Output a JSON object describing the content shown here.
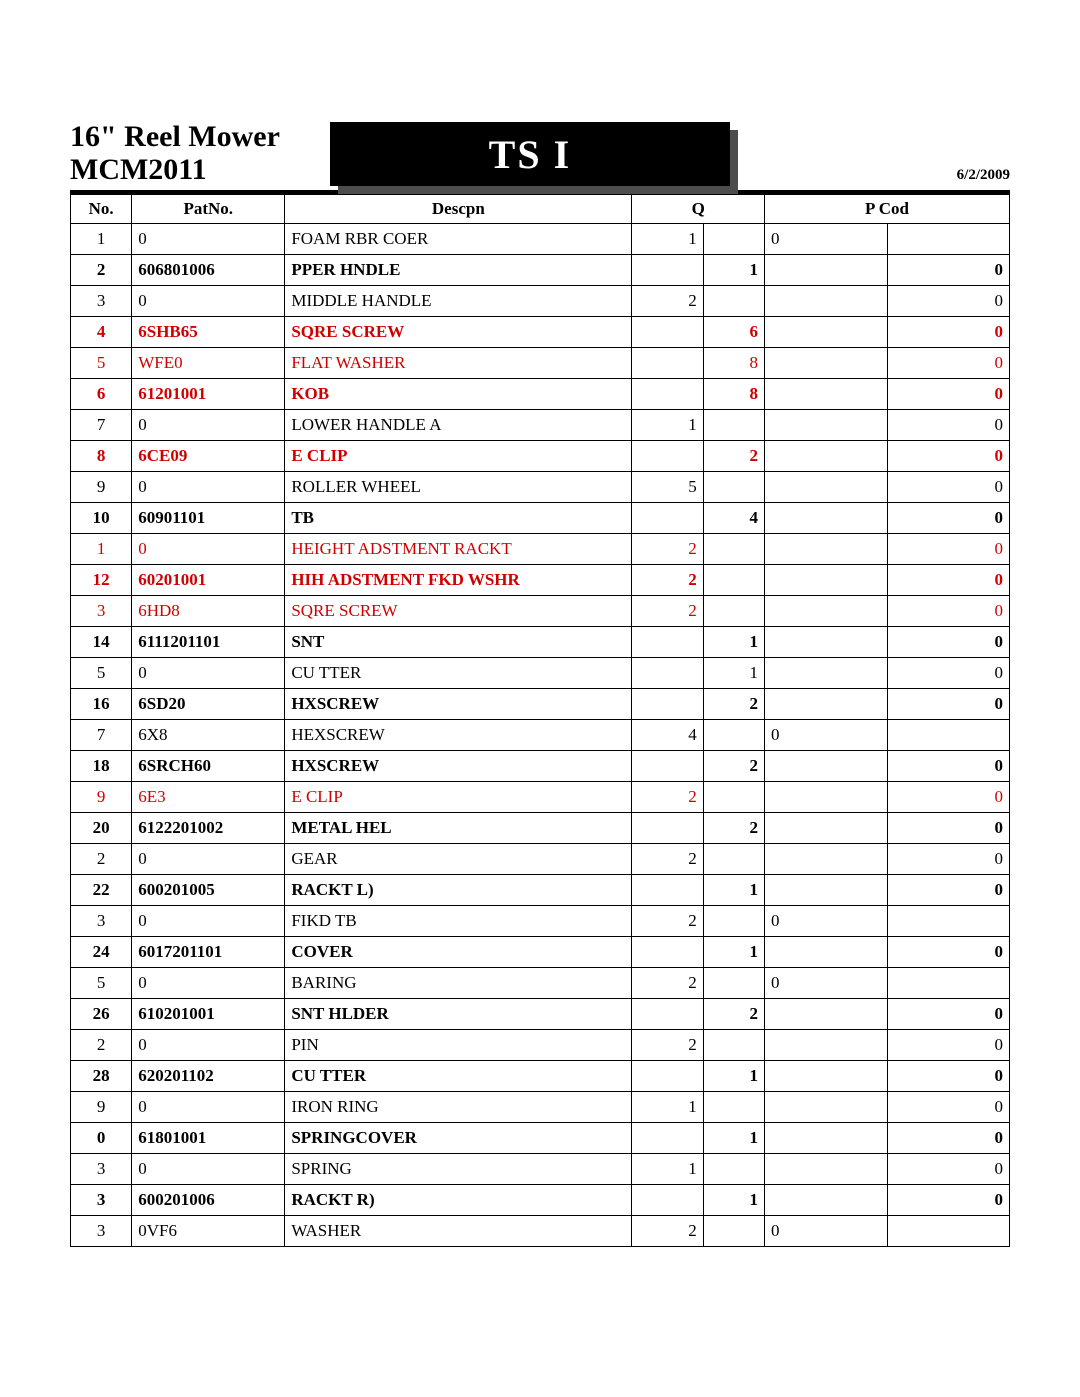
{
  "header": {
    "title1": "16\" Reel Mower",
    "title2": "MCM2011",
    "parts_list_label": "TS   I",
    "date": "6/2/2009"
  },
  "columns": {
    "no": "No.",
    "part_no": "PatNo.",
    "desc": "Descpn",
    "q": "Q",
    "pcode": "P Cod"
  },
  "rows": [
    {
      "no": "1",
      "pn": "0",
      "desc": "FOAM RBR COER",
      "q1": "1",
      "q2": "",
      "p1": "0",
      "p2": "",
      "red": false,
      "bold": false
    },
    {
      "no": "2",
      "pn": "606801006",
      "desc": "PPER HNDLE",
      "q1": "",
      "q2": "1",
      "p1": "",
      "p2": "0",
      "red": false,
      "bold": true
    },
    {
      "no": "3",
      "pn": "0",
      "desc": "MIDDLE HANDLE",
      "q1": "2",
      "q2": "",
      "p1": "",
      "p2": "0",
      "red": false,
      "bold": false
    },
    {
      "no": "4",
      "pn": "6SHB65",
      "desc": "SQRE SCREW",
      "q1": "",
      "q2": "6",
      "p1": "",
      "p2": "0",
      "red": true,
      "bold": true
    },
    {
      "no": "5",
      "pn": "WFE0",
      "desc": "FLAT WASHER",
      "q1": "",
      "q2": "8",
      "p1": "",
      "p2": "0",
      "red": true,
      "bold": false
    },
    {
      "no": "6",
      "pn": "61201001",
      "desc": "KOB",
      "q1": "",
      "q2": "8",
      "p1": "",
      "p2": "0",
      "red": true,
      "bold": true
    },
    {
      "no": "7",
      "pn": "0",
      "desc": "LOWER HANDLE A",
      "q1": "1",
      "q2": "",
      "p1": "",
      "p2": "0",
      "red": false,
      "bold": false
    },
    {
      "no": "8",
      "pn": "6CE09",
      "desc": "E CLIP",
      "q1": "",
      "q2": "2",
      "p1": "",
      "p2": "0",
      "red": true,
      "bold": true
    },
    {
      "no": "9",
      "pn": "0",
      "desc": "ROLLER WHEEL",
      "q1": "5",
      "q2": "",
      "p1": "",
      "p2": "0",
      "red": false,
      "bold": false
    },
    {
      "no": "10",
      "pn": "60901101",
      "desc": "TB",
      "q1": "",
      "q2": "4",
      "p1": "",
      "p2": "0",
      "red": false,
      "bold": true
    },
    {
      "no": "1",
      "pn": "0",
      "desc": "HEIGHT ADSTMENT RACKT",
      "q1": "2",
      "q2": "",
      "p1": "",
      "p2": "0",
      "red": true,
      "bold": false
    },
    {
      "no": "12",
      "pn": "60201001",
      "desc": "HIH ADSTMENT FKD WSHR",
      "q1": "2",
      "q2": "",
      "p1": "",
      "p2": "0",
      "red": true,
      "bold": true
    },
    {
      "no": "3",
      "pn": "6HD8",
      "desc": "SQRE SCREW",
      "q1": "2",
      "q2": "",
      "p1": "",
      "p2": "0",
      "red": true,
      "bold": false
    },
    {
      "no": "14",
      "pn": "6111201101",
      "desc": "SNT",
      "q1": "",
      "q2": "1",
      "p1": "",
      "p2": "0",
      "red": false,
      "bold": true
    },
    {
      "no": "5",
      "pn": "0",
      "desc": "CU        TTER",
      "q1": "",
      "q2": "1",
      "p1": "",
      "p2": "0",
      "red": false,
      "bold": false
    },
    {
      "no": "16",
      "pn": "6SD20",
      "desc": "HXSCREW",
      "q1": "",
      "q2": "2",
      "p1": "",
      "p2": "0",
      "red": false,
      "bold": true
    },
    {
      "no": "7",
      "pn": "6X8",
      "desc": "HEXSCREW",
      "q1": "4",
      "q2": "",
      "p1": "0",
      "p2": "",
      "red": false,
      "bold": false
    },
    {
      "no": "18",
      "pn": "6SRCH60",
      "desc": "HXSCREW",
      "q1": "",
      "q2": "2",
      "p1": "",
      "p2": "0",
      "red": false,
      "bold": true
    },
    {
      "no": "9",
      "pn": "6E3",
      "desc": "E CLIP",
      "q1": "2",
      "q2": "",
      "p1": "",
      "p2": "0",
      "red": true,
      "bold": false
    },
    {
      "no": "20",
      "pn": "6122201002",
      "desc": "METAL HEL",
      "q1": "",
      "q2": "2",
      "p1": "",
      "p2": "0",
      "red": false,
      "bold": true
    },
    {
      "no": "2",
      "pn": "0",
      "desc": "GEAR",
      "q1": "2",
      "q2": "",
      "p1": "",
      "p2": "0",
      "red": false,
      "bold": false
    },
    {
      "no": "22",
      "pn": "600201005",
      "desc": "RACKT L)",
      "q1": "",
      "q2": "1",
      "p1": "",
      "p2": "0",
      "red": false,
      "bold": true
    },
    {
      "no": "3",
      "pn": "0",
      "desc": "FIKD TB",
      "q1": "2",
      "q2": "",
      "p1": "0",
      "p2": "",
      "red": false,
      "bold": false
    },
    {
      "no": "24",
      "pn": "6017201101",
      "desc": "COVER",
      "q1": "",
      "q2": "1",
      "p1": "",
      "p2": "0",
      "red": false,
      "bold": true
    },
    {
      "no": "5",
      "pn": "0",
      "desc": "BARING",
      "q1": "2",
      "q2": "",
      "p1": "0",
      "p2": "",
      "red": false,
      "bold": false
    },
    {
      "no": "26",
      "pn": "610201001",
      "desc": "SNT HLDER",
      "q1": "",
      "q2": "2",
      "p1": "",
      "p2": "0",
      "red": false,
      "bold": true
    },
    {
      "no": "2",
      "pn": "0",
      "desc": "PIN",
      "q1": "2",
      "q2": "",
      "p1": "",
      "p2": "0",
      "red": false,
      "bold": false
    },
    {
      "no": "28",
      "pn": "620201102",
      "desc": "CU    TTER",
      "q1": "",
      "q2": "1",
      "p1": "",
      "p2": "0",
      "red": false,
      "bold": true
    },
    {
      "no": "9",
      "pn": "0",
      "desc": "IRON RING",
      "q1": "1",
      "q2": "",
      "p1": "",
      "p2": "0",
      "red": false,
      "bold": false
    },
    {
      "no": "0",
      "pn": "61801001",
      "desc": "SPRINGCOVER",
      "q1": "",
      "q2": "1",
      "p1": "",
      "p2": "0",
      "red": false,
      "bold": true
    },
    {
      "no": "3",
      "pn": "0",
      "desc": "SPRING",
      "q1": "1",
      "q2": "",
      "p1": "",
      "p2": "0",
      "red": false,
      "bold": false
    },
    {
      "no": "3",
      "pn": "600201006",
      "desc": "RACKT R)",
      "q1": "",
      "q2": "1",
      "p1": "",
      "p2": "0",
      "red": false,
      "bold": true
    },
    {
      "no": "3",
      "pn": "0VF6",
      "desc": "WASHER",
      "q1": "2",
      "q2": "",
      "p1": "0",
      "p2": "",
      "red": false,
      "bold": false
    }
  ]
}
